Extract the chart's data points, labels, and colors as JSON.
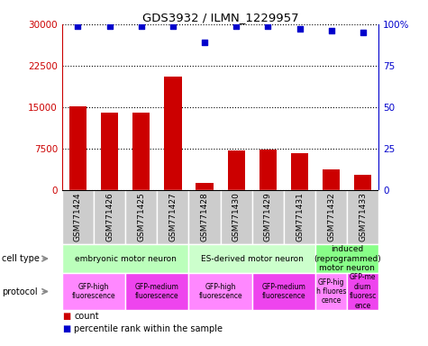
{
  "title": "GDS3932 / ILMN_1229957",
  "samples": [
    "GSM771424",
    "GSM771426",
    "GSM771425",
    "GSM771427",
    "GSM771428",
    "GSM771430",
    "GSM771429",
    "GSM771431",
    "GSM771432",
    "GSM771433"
  ],
  "counts": [
    15200,
    14000,
    14100,
    20500,
    1300,
    7200,
    7300,
    6700,
    3800,
    2800
  ],
  "percentiles": [
    99,
    99,
    99,
    99,
    89,
    99,
    99,
    97,
    96,
    95
  ],
  "ylim_left": [
    0,
    30000
  ],
  "ylim_right": [
    0,
    100
  ],
  "yticks_left": [
    0,
    7500,
    15000,
    22500,
    30000
  ],
  "yticks_right": [
    0,
    25,
    50,
    75,
    100
  ],
  "bar_color": "#cc0000",
  "dot_color": "#0000cc",
  "cell_type_groups": [
    {
      "label": "embryonic motor neuron",
      "start": 0,
      "end": 3,
      "color": "#bbffbb"
    },
    {
      "label": "ES-derived motor neuron",
      "start": 4,
      "end": 7,
      "color": "#ccffcc"
    },
    {
      "label": "induced\n(reprogrammed)\nmotor neuron",
      "start": 8,
      "end": 9,
      "color": "#88ff88"
    }
  ],
  "protocol_groups": [
    {
      "label": "GFP-high\nfluorescence",
      "start": 0,
      "end": 1,
      "color": "#ff88ff"
    },
    {
      "label": "GFP-medium\nfluorescence",
      "start": 2,
      "end": 3,
      "color": "#ee44ee"
    },
    {
      "label": "GFP-high\nfluorescence",
      "start": 4,
      "end": 5,
      "color": "#ff88ff"
    },
    {
      "label": "GFP-medium\nfluorescence",
      "start": 6,
      "end": 7,
      "color": "#ee44ee"
    },
    {
      "label": "GFP-hig\nh fluores\ncence",
      "start": 8,
      "end": 8,
      "color": "#ff88ff"
    },
    {
      "label": "GFP-me\ndium\nfluoresc\nence",
      "start": 9,
      "end": 9,
      "color": "#ee44ee"
    }
  ],
  "sample_bg_color": "#cccccc",
  "left_label_color": "#cc0000",
  "right_label_color": "#0000cc",
  "grid_color": "#555555",
  "legend_count_color": "#cc0000",
  "legend_pct_color": "#0000cc",
  "fig_width": 4.75,
  "fig_height": 3.84,
  "fig_dpi": 100
}
